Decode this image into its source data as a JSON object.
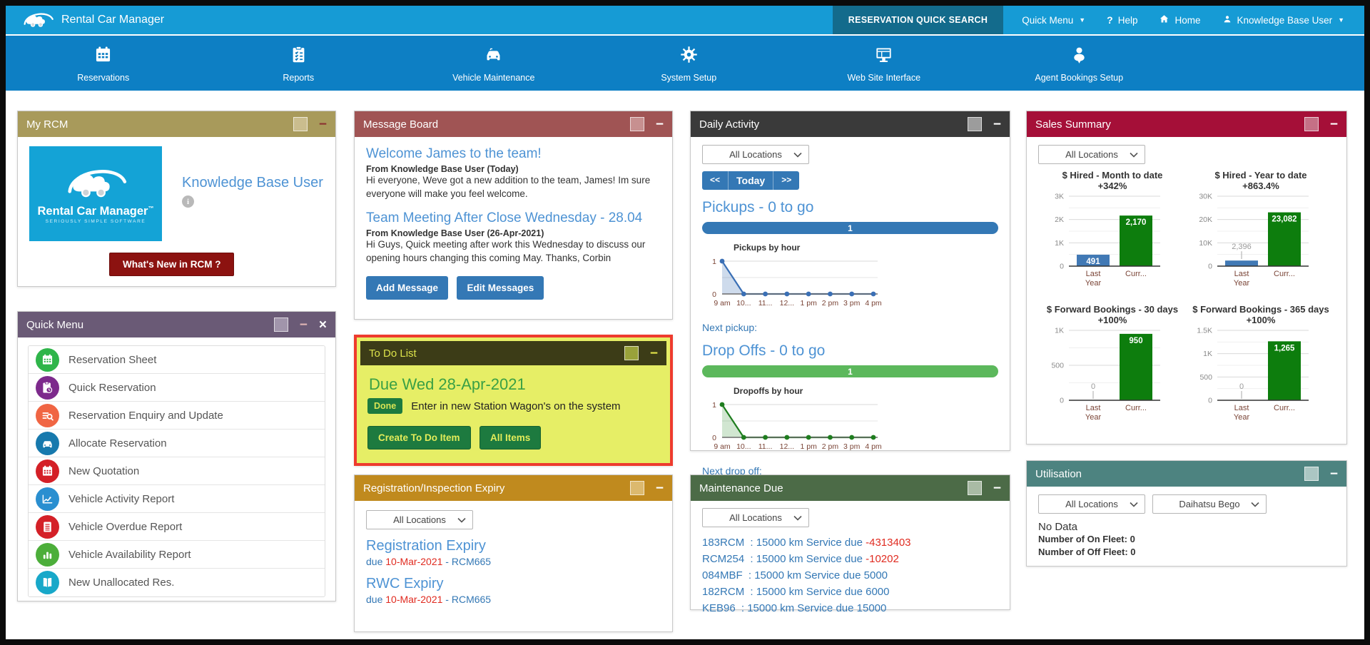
{
  "colors": {
    "topbar": "#169bd5",
    "navbar": "#0d7fc4",
    "quick_search_bg": "#136b8c",
    "link_blue": "#4e93d4",
    "action_blue": "#3478b5",
    "danger_red": "#e02b20"
  },
  "header": {
    "brand": "Rental Car Manager",
    "quick_search": "RESERVATION QUICK SEARCH",
    "menu": [
      {
        "label": "Quick Menu",
        "icon": null,
        "caret": true
      },
      {
        "label": "Help",
        "icon": "help",
        "caret": false
      },
      {
        "label": "Home",
        "icon": "home",
        "caret": false
      },
      {
        "label": "Knowledge Base User",
        "icon": "user",
        "caret": true
      }
    ]
  },
  "nav": {
    "items": [
      {
        "label": "Reservations",
        "icon": "calendar"
      },
      {
        "label": "Reports",
        "icon": "clipboard"
      },
      {
        "label": "Vehicle Maintenance",
        "icon": "car"
      },
      {
        "label": "System Setup",
        "icon": "gear"
      },
      {
        "label": "Web Site Interface",
        "icon": "monitor"
      },
      {
        "label": "Agent Bookings Setup",
        "icon": "person"
      }
    ]
  },
  "panels": {
    "my_rcm": {
      "title": "My RCM",
      "colors": {
        "header": "#a89a5b",
        "square": "#cabd8e",
        "minus": "#8b3030"
      },
      "logo_title": "Rental Car Manager",
      "logo_tm": "™",
      "logo_tagline": "SERIOUSLY SIMPLE SOFTWARE",
      "user_name": "Knowledge Base User",
      "whats_new": "What's New in RCM ?"
    },
    "quick_menu": {
      "title": "Quick Menu",
      "colors": {
        "header": "#6a5a76",
        "square": "#a195ab",
        "minus": "#e2b6b6"
      },
      "items": [
        {
          "label": "Reservation Sheet",
          "icon": "calendar",
          "color": "#2fb54a"
        },
        {
          "label": "Quick Reservation",
          "icon": "clipboard-clock",
          "color": "#7d2a8c"
        },
        {
          "label": "Reservation Enquiry and Update",
          "icon": "search-list",
          "color": "#f06543"
        },
        {
          "label": "Allocate Reservation",
          "icon": "car",
          "color": "#1779ad"
        },
        {
          "label": "New Quotation",
          "icon": "calendar",
          "color": "#d42027"
        },
        {
          "label": "Vehicle Activity Report",
          "icon": "line-chart",
          "color": "#2a8fd0"
        },
        {
          "label": "Vehicle Overdue Report",
          "icon": "document",
          "color": "#d42027"
        },
        {
          "label": "Vehicle Availability Report",
          "icon": "bar-chart",
          "color": "#4cae3a"
        },
        {
          "label": "New Unallocated Res.",
          "icon": "book",
          "color": "#18a8c9"
        }
      ]
    },
    "message_board": {
      "title": "Message Board",
      "colors": {
        "header": "#a05454",
        "square": "#c79090",
        "minus": "#fff"
      },
      "messages": [
        {
          "title": "Welcome James to the team!",
          "from": "From Knowledge Base User (Today)",
          "body": "Hi everyone, Weve got a new addition to the team, James! Im sure everyone will make you feel welcome."
        },
        {
          "title": "Team Meeting After Close Wednesday - 28.04",
          "from": "From Knowledge Base User (26-Apr-2021)",
          "body": "Hi Guys, Quick meeting after work this Wednesday to discuss our opening hours changing this coming May. Thanks, Corbin"
        }
      ],
      "buttons": [
        "Add Message",
        "Edit Messages"
      ]
    },
    "todo": {
      "title": "To Do List",
      "colors": {
        "header": "#3c3c17",
        "square": "#99a23a",
        "minus": "#e6e84a",
        "title": "#dce24a",
        "body": "#e6ee66",
        "outline": "#ee3b2e"
      },
      "due_heading": "Due Wed 28-Apr-2021",
      "status_label": "Done",
      "task": "Enter in new Station Wagon's on the system",
      "buttons": [
        "Create To Do Item",
        "All Items"
      ]
    },
    "registration": {
      "title": "Registration/Inspection Expiry",
      "colors": {
        "header": "#c08a1e",
        "square": "#dcb96e",
        "minus": "#fff"
      },
      "location_select": "All Locations",
      "items": [
        {
          "heading": "Registration Expiry",
          "prefix": "due ",
          "date": "10-Mar-2021",
          "suffix": " - RCM665"
        },
        {
          "heading": "RWC Expiry",
          "prefix": "due ",
          "date": "10-Mar-2021",
          "suffix": " - RCM665"
        }
      ]
    },
    "daily_activity": {
      "title": "Daily Activity",
      "colors": {
        "header": "#3a3a3a",
        "square": "#9c9c9c",
        "minus": "#fff"
      },
      "location_select": "All Locations",
      "prev": "<<",
      "today": "Today",
      "next": ">>",
      "pickups_heading": "Pickups - 0 to go",
      "pickups_count": "1",
      "next_pickup_label": "Next pickup:",
      "dropoffs_heading": "Drop Offs - 0 to go",
      "dropoffs_count": "1",
      "next_dropoff_label": "Next drop off:"
    },
    "maintenance": {
      "title": "Maintenance Due",
      "colors": {
        "header": "#4c6b47",
        "square": "#a9bba5",
        "minus": "#fff"
      },
      "location_select": "All Locations",
      "rows": [
        {
          "vehicle": "183RCM",
          "sep": " : ",
          "text": "15000 km Service due ",
          "value": "-4313403",
          "overdue": true
        },
        {
          "vehicle": "RCM254",
          "sep": " : ",
          "text": "15000 km Service due ",
          "value": "-10202",
          "overdue": true
        },
        {
          "vehicle": "084MBF",
          "sep": " : ",
          "text": "15000 km Service due ",
          "value": "5000",
          "overdue": false
        },
        {
          "vehicle": "182RCM",
          "sep": " : ",
          "text": "15000 km Service due ",
          "value": "6000",
          "overdue": false
        },
        {
          "vehicle": "KEB96",
          "sep": " : ",
          "text": "15000 km Service due ",
          "value": "15000",
          "overdue": false
        }
      ]
    },
    "sales": {
      "title": "Sales Summary",
      "colors": {
        "header": "#a50f38",
        "square": "#c57086",
        "minus": "#fff"
      },
      "location_select": "All Locations"
    },
    "utilisation": {
      "title": "Utilisation",
      "colors": {
        "header": "#4d8380",
        "square": "#abc6c3",
        "minus": "#fff"
      },
      "selects": [
        "All Locations",
        "Daihatsu Bego"
      ],
      "no_data": "No Data",
      "rows": [
        {
          "label": "Number of On Fleet: ",
          "value": "0"
        },
        {
          "label": "Number of Off Fleet: ",
          "value": "0"
        }
      ]
    }
  },
  "chart_data": [
    {
      "id": "pickups-by-hour",
      "type": "area",
      "title": "Pickups by hour",
      "x": [
        "9 am",
        "10...",
        "11...",
        "12...",
        "1 pm",
        "2 pm",
        "3 pm",
        "4 pm"
      ],
      "values": [
        1,
        0,
        0,
        0,
        0,
        0,
        0,
        0
      ],
      "ylim": [
        0,
        1
      ],
      "yticks": [
        0,
        1
      ],
      "grid": true,
      "legend": "none",
      "color": "#3a6fb5",
      "fill": "rgba(58,111,181,0.25)"
    },
    {
      "id": "dropoffs-by-hour",
      "type": "area",
      "title": "Dropoffs by hour",
      "x": [
        "9 am",
        "10...",
        "11...",
        "12...",
        "1 pm",
        "2 pm",
        "3 pm",
        "4 pm"
      ],
      "values": [
        1,
        0,
        0,
        0,
        0,
        0,
        0,
        0
      ],
      "ylim": [
        0,
        1
      ],
      "yticks": [
        0,
        1
      ],
      "grid": true,
      "legend": "none",
      "color": "#1e7d1e",
      "fill": "rgba(46,139,46,0.22)"
    },
    {
      "id": "hired-month-to-date",
      "type": "bar",
      "title": "$ Hired - Month to date",
      "subtitle": "+342%",
      "categories": [
        "Last Year",
        "Curr..."
      ],
      "values": [
        491,
        2170
      ],
      "value_labels": [
        "491",
        "2,170"
      ],
      "ymax": 3000,
      "yticks": [
        {
          "label": "0",
          "value": 0
        },
        {
          "label": "1K",
          "value": 1000
        },
        {
          "label": "2K",
          "value": 2000
        },
        {
          "label": "3K",
          "value": 3000
        }
      ],
      "bar_colors": [
        "#4179b5",
        "#0d7d0d"
      ]
    },
    {
      "id": "hired-year-to-date",
      "type": "bar",
      "title": "$ Hired - Year to date",
      "subtitle": "+863.4%",
      "categories": [
        "Last Year",
        "Curr..."
      ],
      "values": [
        2396,
        23082
      ],
      "value_labels": [
        "2,396",
        "23,082"
      ],
      "ymax": 30000,
      "yticks": [
        {
          "label": "0",
          "value": 0
        },
        {
          "label": "10K",
          "value": 10000
        },
        {
          "label": "20K",
          "value": 20000
        },
        {
          "label": "30K",
          "value": 30000
        }
      ],
      "bar_colors": [
        "#4179b5",
        "#0d7d0d"
      ]
    },
    {
      "id": "forward-bookings-30-days",
      "type": "bar",
      "title": "$ Forward Bookings - 30 days",
      "subtitle": "+100%",
      "categories": [
        "Last Year",
        "Curr..."
      ],
      "values": [
        0,
        950
      ],
      "value_labels": [
        "0",
        "950"
      ],
      "ymax": 1000,
      "yticks": [
        {
          "label": "0",
          "value": 0
        },
        {
          "label": "500",
          "value": 500
        },
        {
          "label": "1K",
          "value": 1000
        }
      ],
      "bar_colors": [
        "#4179b5",
        "#0d7d0d"
      ]
    },
    {
      "id": "forward-bookings-365-days",
      "type": "bar",
      "title": "$ Forward Bookings - 365 days",
      "subtitle": "+100%",
      "categories": [
        "Last Year",
        "Curr..."
      ],
      "values": [
        0,
        1265
      ],
      "value_labels": [
        "0",
        "1,265"
      ],
      "ymax": 1500,
      "yticks": [
        {
          "label": "0",
          "value": 0
        },
        {
          "label": "500",
          "value": 500
        },
        {
          "label": "1K",
          "value": 1000
        },
        {
          "label": "1.5K",
          "value": 1500
        }
      ],
      "bar_colors": [
        "#4179b5",
        "#0d7d0d"
      ]
    }
  ]
}
